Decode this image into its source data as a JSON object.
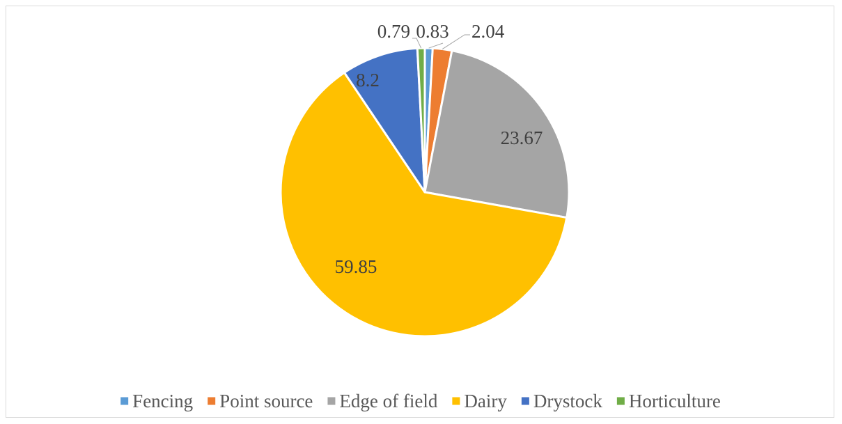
{
  "chart_data": {
    "type": "pie",
    "categories": [
      "Fencing",
      "Point source",
      "Edge of field",
      "Dairy",
      "Drystock",
      "Horticulture"
    ],
    "values": [
      0.83,
      2.04,
      23.67,
      59.85,
      8.2,
      0.79
    ],
    "data_labels": [
      "0.83",
      "2.04",
      "23.67",
      "59.85",
      "8.2",
      "0.79"
    ],
    "colors": [
      "#5b9bd5",
      "#ed7d31",
      "#a5a5a5",
      "#ffc000",
      "#4472c4",
      "#70ad47"
    ],
    "legend": {
      "placement": "bottom"
    },
    "start_angle_deg": 0,
    "direction": "clockwise"
  }
}
